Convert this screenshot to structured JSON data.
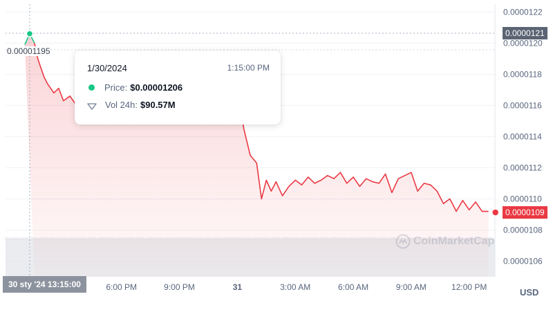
{
  "chart_data": {
    "type": "area",
    "currency_label": "USD",
    "y_ticks": [
      "0.0000122",
      "0.0000120",
      "0.0000118",
      "0.0000116",
      "0.0000114",
      "0.0000112",
      "0.0000110",
      "0.0000108",
      "0.0000106"
    ],
    "ylim": [
      1.05e-05,
      1.225e-05
    ],
    "x_ticks": [
      "6:00 PM",
      "9:00 PM",
      "31",
      "3:00 AM",
      "6:00 AM",
      "9:00 AM",
      "12:00 PM"
    ],
    "x": [
      "2024-01-30 13:00",
      "2024-01-30 13:15",
      "2024-01-30 13:30",
      "2024-01-30 13:40",
      "2024-01-30 14:00",
      "2024-01-30 14:10",
      "2024-01-30 14:30",
      "2024-01-30 14:45",
      "2024-01-30 15:00",
      "2024-01-30 15:20",
      "2024-01-30 15:40",
      "2024-01-30 16:00",
      "2024-01-30 16:20",
      "2024-01-30 16:40",
      "2024-01-30 17:00",
      "2024-01-30 17:30",
      "2024-01-31 00:10",
      "2024-01-31 00:20",
      "2024-01-31 00:40",
      "2024-01-31 01:00",
      "2024-01-31 01:15",
      "2024-01-31 01:30",
      "2024-01-31 01:45",
      "2024-01-31 02:00",
      "2024-01-31 02:20",
      "2024-01-31 02:40",
      "2024-01-31 03:00",
      "2024-01-31 03:20",
      "2024-01-31 03:40",
      "2024-01-31 04:00",
      "2024-01-31 04:20",
      "2024-01-31 04:40",
      "2024-01-31 05:00",
      "2024-01-31 05:20",
      "2024-01-31 05:40",
      "2024-01-31 06:00",
      "2024-01-31 06:20",
      "2024-01-31 06:40",
      "2024-01-31 07:00",
      "2024-01-31 07:20",
      "2024-01-31 07:40",
      "2024-01-31 08:00",
      "2024-01-31 08:20",
      "2024-01-31 08:40",
      "2024-01-31 09:00",
      "2024-01-31 09:20",
      "2024-01-31 09:40",
      "2024-01-31 10:00",
      "2024-01-31 10:20",
      "2024-01-31 10:40",
      "2024-01-31 11:00",
      "2024-01-31 11:20",
      "2024-01-31 11:40",
      "2024-01-31 12:00",
      "2024-01-31 12:20",
      "2024-01-31 12:40",
      "2024-01-31 13:00"
    ],
    "series": [
      {
        "values": [
          1.199e-05,
          1.206e-05,
          1.2e-05,
          1.19e-05,
          1.178e-05,
          1.174e-05,
          1.168e-05,
          1.171e-05,
          1.163e-05,
          1.166e-05,
          1.16e-05,
          1.165e-05,
          1.161e-05,
          1.168e-05,
          1.165e-05,
          1.162e-05,
          1.16e-05,
          1.145e-05,
          1.128e-05,
          1.123e-05,
          1.1e-05,
          1.112e-05,
          1.105e-05,
          1.111e-05,
          1.102e-05,
          1.108e-05,
          1.112e-05,
          1.109e-05,
          1.114e-05,
          1.11e-05,
          1.112e-05,
          1.115e-05,
          1.113e-05,
          1.117e-05,
          1.11e-05,
          1.114e-05,
          1.108e-05,
          1.113e-05,
          1.111e-05,
          1.11e-05,
          1.116e-05,
          1.104e-05,
          1.113e-05,
          1.115e-05,
          1.117e-05,
          1.105e-05,
          1.11e-05,
          1.109e-05,
          1.105e-05,
          1.097e-05,
          1.1e-05,
          1.092e-05,
          1.099e-05,
          1.093e-05,
          1.098e-05,
          1.092e-05,
          1.092e-05
        ]
      }
    ],
    "volume_note_hidden": true,
    "tooltip": {
      "date": "1/30/2024",
      "time": "1:15:00 PM",
      "price_label": "Price:",
      "price_value": "$0.00001206",
      "vol_label": "Vol 24h:",
      "vol_value": "$90.57M"
    },
    "start_label": "0.00001195",
    "cursor_time_label": "30 sty '24   13:15:00",
    "cursor_price_label": "0.0000121",
    "last_price_label": "0.0000109",
    "watermark": "CoinMarketCap",
    "colors": {
      "line": "#ea3943",
      "area_top": "#ea3943",
      "up_segment": "#16c784",
      "volume": "#e3e6ea",
      "grid": "#eff2f5",
      "axis_text": "#58667e"
    }
  }
}
